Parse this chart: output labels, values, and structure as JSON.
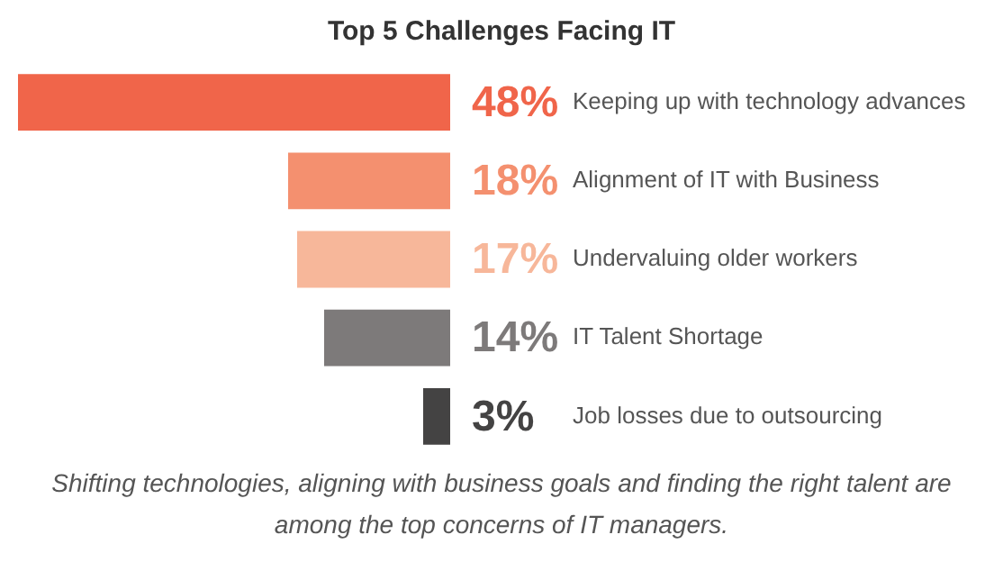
{
  "chart_data": {
    "type": "bar",
    "orientation": "horizontal",
    "title": "Top 5 Challenges Facing IT",
    "categories": [
      "Keeping up with technology advances",
      "Alignment of IT with Business",
      "Undervaluing older workers",
      "IT Talent Shortage",
      "Job losses due to outsourcing"
    ],
    "values": [
      48,
      18,
      17,
      14,
      3
    ],
    "colors": [
      "#f0654a",
      "#f4906f",
      "#f7b79a",
      "#7d7a7a",
      "#444343"
    ],
    "value_labels": [
      "48%",
      "18%",
      "17%",
      "14%",
      "3%"
    ],
    "annotations": [
      "Shifting technologies, aligning with business goals and finding the right talent are among the top concerns of IT managers."
    ]
  }
}
